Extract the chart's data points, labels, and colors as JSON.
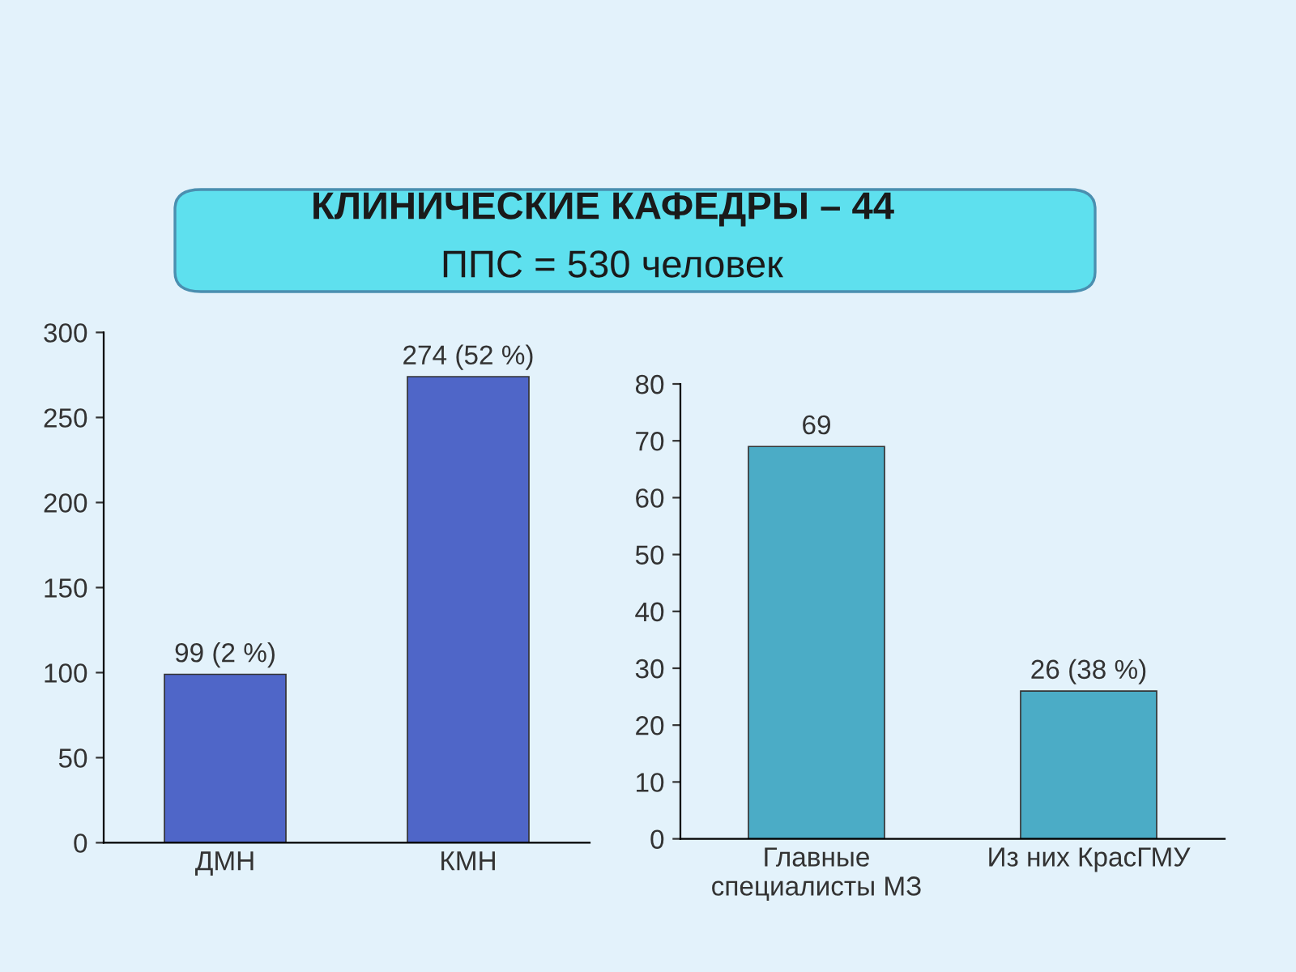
{
  "chart_data": [
    {
      "type": "other",
      "title": "КЛИНИЧЕСКИЕ КАФЕДРЫ – 44",
      "subtitle": "ППС = 530 человек"
    },
    {
      "type": "bar",
      "categories": [
        "ДМН",
        "КМН"
      ],
      "values": [
        99,
        274
      ],
      "value_labels": [
        "99 (2 %)",
        "274 (52 %)"
      ],
      "color": "#4f66c8",
      "ylim": [
        0,
        300
      ],
      "yticks": [
        0,
        50,
        100,
        150,
        200,
        250,
        300
      ],
      "grid": false
    },
    {
      "type": "bar",
      "categories": [
        "Главные\nспециалисты МЗ",
        "Из них КрасГМУ"
      ],
      "values": [
        69,
        26
      ],
      "value_labels": [
        "69",
        "26 (38 %)"
      ],
      "color": "#4bacc6",
      "ylim": [
        0,
        80
      ],
      "yticks": [
        0,
        10,
        20,
        30,
        40,
        50,
        60,
        70,
        80
      ],
      "grid": false
    }
  ]
}
